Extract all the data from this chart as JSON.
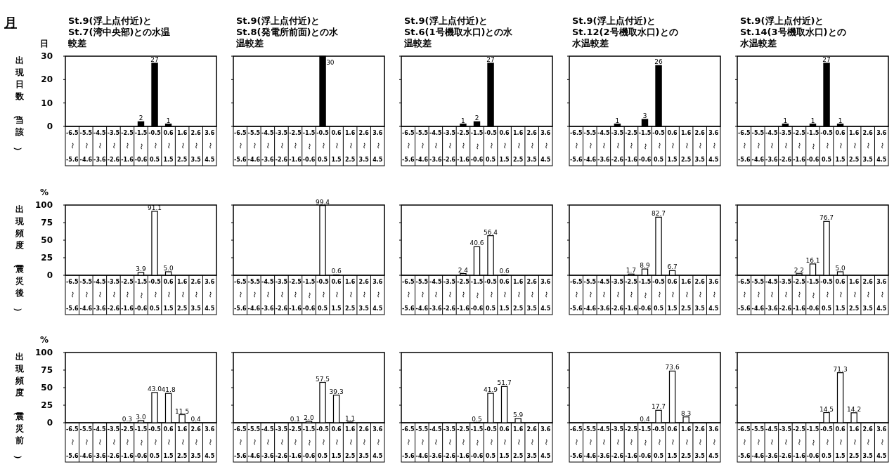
{
  "chart_data": [
    {
      "type": "bar",
      "title": "St.9(浮上点付近)とSt.7(湾中央部)との水温較差",
      "ylabel": "出現日数（当該）",
      "annotations": [
        "月",
        "日"
      ],
      "categories": [
        "-6.5〜-5.6",
        "-5.5〜-4.6",
        "-4.5〜-3.6",
        "-3.5〜-2.6",
        "-2.5〜-1.6",
        "-1.5〜-0.6",
        "-0.5〜0.5",
        "0.6〜1.5",
        "1.6〜2.5",
        "2.6〜3.5",
        "3.6〜4.5"
      ],
      "values": [
        0,
        0,
        0,
        0,
        0,
        2,
        27,
        1,
        0,
        0,
        0
      ],
      "value_labels": [
        null,
        null,
        null,
        null,
        null,
        "2",
        "27",
        "1",
        null,
        null,
        null
      ],
      "color": "#000000",
      "ylim": [
        0,
        30
      ],
      "yticks": [
        0,
        10,
        20,
        30
      ]
    },
    {
      "type": "bar",
      "title": "St.9(浮上点付近)とSt.8(発電所前面)との水温較差",
      "categories": [
        "-6.5〜-5.6",
        "-5.5〜-4.6",
        "-4.5〜-3.6",
        "-3.5〜-2.6",
        "-2.5〜-1.6",
        "-1.5〜-0.6",
        "-0.5〜0.5",
        "0.6〜1.5",
        "1.6〜2.5",
        "2.6〜3.5",
        "3.6〜4.5"
      ],
      "values": [
        0,
        0,
        0,
        0,
        0,
        0,
        30,
        0,
        0,
        0,
        0
      ],
      "value_labels": [
        null,
        null,
        null,
        null,
        null,
        null,
        "30",
        null,
        null,
        null,
        null
      ],
      "color": "#000000",
      "ylim": [
        0,
        30
      ],
      "yticks": [
        0,
        10,
        20,
        30
      ],
      "tick_labels": "x"
    },
    {
      "type": "bar",
      "title": "St.9(浮上点付近)とSt.6(1号機取水口)との水温較差",
      "categories": [
        "-6.5〜-5.6",
        "-5.5〜-4.6",
        "-4.5〜-3.6",
        "-3.5〜-2.6",
        "-2.5〜-1.6",
        "-1.5〜-0.6",
        "-0.5〜0.5",
        "0.6〜1.5",
        "1.6〜2.5",
        "2.6〜3.5",
        "3.6〜4.5"
      ],
      "values": [
        0,
        0,
        0,
        0,
        1,
        2,
        27,
        0,
        0,
        0,
        0
      ],
      "value_labels": [
        null,
        null,
        null,
        null,
        "1",
        "2",
        "27",
        null,
        null,
        null,
        null
      ],
      "color": "#000000",
      "ylim": [
        0,
        30
      ],
      "yticks": [
        0,
        10,
        20,
        30
      ],
      "tick_labels": "x"
    },
    {
      "type": "bar",
      "title": "St.9(浮上点付近)とSt.12(2号機取水口)との水温較差",
      "categories": [
        "-6.5〜-5.6",
        "-5.5〜-4.6",
        "-4.5〜-3.6",
        "-3.5〜-2.6",
        "-2.5〜-1.6",
        "-1.5〜-0.6",
        "-0.5〜0.5",
        "0.6〜1.5",
        "1.6〜2.5",
        "2.6〜3.5",
        "3.6〜4.5"
      ],
      "values": [
        0,
        0,
        0,
        1,
        0,
        3,
        26,
        0,
        0,
        0,
        0
      ],
      "value_labels": [
        null,
        null,
        null,
        "1",
        null,
        "3",
        "26",
        null,
        null,
        null,
        null
      ],
      "color": "#000000",
      "ylim": [
        0,
        30
      ],
      "yticks": [
        0,
        10,
        20,
        30
      ],
      "tick_labels": "x"
    },
    {
      "type": "bar",
      "title": "St.9(浮上点付近)とSt.14(3号機取水口)との水温較差",
      "categories": [
        "-6.5〜-5.6",
        "-5.5〜-4.6",
        "-4.5〜-3.6",
        "-3.5〜-2.6",
        "-2.5〜-1.6",
        "-1.5〜-0.6",
        "-0.5〜0.5",
        "0.6〜1.5",
        "1.6〜2.5",
        "2.6〜3.5",
        "3.6〜4.5"
      ],
      "values": [
        0,
        0,
        0,
        1,
        0,
        1,
        27,
        1,
        0,
        0,
        0
      ],
      "value_labels": [
        null,
        null,
        null,
        "1",
        null,
        "1",
        "27",
        "1",
        null,
        null,
        null
      ],
      "color": "#000000",
      "ylim": [
        0,
        30
      ],
      "yticks": [
        0,
        10,
        20,
        30
      ],
      "tick_labels": "x"
    },
    {
      "type": "bar",
      "ylabel": "出現頻度（震災後）",
      "annotations": [
        "%"
      ],
      "categories": [
        "-6.5〜-5.6",
        "-5.5〜-4.6",
        "-4.5〜-3.6",
        "-3.5〜-2.6",
        "-2.5〜-1.6",
        "-1.5〜-0.6",
        "-0.5〜0.5",
        "0.6〜1.5",
        "1.6〜2.5",
        "2.6〜3.5",
        "3.6〜4.5"
      ],
      "values": [
        0,
        0,
        0,
        0,
        0,
        3.9,
        91.1,
        5.0,
        0,
        0,
        0
      ],
      "value_labels": [
        null,
        null,
        null,
        null,
        null,
        "3.9",
        "91.1",
        "5.0",
        null,
        null,
        null
      ],
      "color": "#ffffff",
      "ylim": [
        0,
        100
      ],
      "yticks": [
        0,
        25,
        50,
        75,
        100
      ]
    },
    {
      "type": "bar",
      "categories": [
        "-6.5〜-5.6",
        "-5.5〜-4.6",
        "-4.5〜-3.6",
        "-3.5〜-2.6",
        "-2.5〜-1.6",
        "-1.5〜-0.6",
        "-0.5〜0.5",
        "0.6〜1.5",
        "1.6〜2.5",
        "2.6〜3.5",
        "3.6〜4.5"
      ],
      "values": [
        0,
        0,
        0,
        0,
        0,
        0,
        99.4,
        0.6,
        0,
        0,
        0
      ],
      "value_labels": [
        null,
        null,
        null,
        null,
        null,
        null,
        "99.4",
        "0.6",
        null,
        null,
        null
      ],
      "color": "#ffffff",
      "ylim": [
        0,
        100
      ],
      "yticks": [
        0,
        25,
        50,
        75,
        100
      ],
      "tick_labels": "x"
    },
    {
      "type": "bar",
      "categories": [
        "-6.5〜-5.6",
        "-5.5〜-4.6",
        "-4.5〜-3.6",
        "-3.5〜-2.6",
        "-2.5〜-1.6",
        "-1.5〜-0.6",
        "-0.5〜0.5",
        "0.6〜1.5",
        "1.6〜2.5",
        "2.6〜3.5",
        "3.6〜4.5"
      ],
      "values": [
        0,
        0,
        0,
        0,
        2.4,
        40.6,
        56.4,
        0.6,
        0,
        0,
        0
      ],
      "value_labels": [
        null,
        null,
        null,
        null,
        "2.4",
        "40.6",
        "56.4",
        "0.6",
        null,
        null,
        null
      ],
      "color": "#ffffff",
      "ylim": [
        0,
        100
      ],
      "yticks": [
        0,
        25,
        50,
        75,
        100
      ],
      "tick_labels": "x"
    },
    {
      "type": "bar",
      "categories": [
        "-6.5〜-5.6",
        "-5.5〜-4.6",
        "-4.5〜-3.6",
        "-3.5〜-2.6",
        "-2.5〜-1.6",
        "-1.5〜-0.6",
        "-0.5〜0.5",
        "0.6〜1.5",
        "1.6〜2.5",
        "2.6〜3.5",
        "3.6〜4.5"
      ],
      "values": [
        0,
        0,
        0,
        0,
        1.7,
        8.9,
        82.7,
        6.7,
        0,
        0,
        0
      ],
      "value_labels": [
        null,
        null,
        null,
        null,
        "1.7",
        "8.9",
        "82.7",
        "6.7",
        null,
        null,
        null
      ],
      "color": "#ffffff",
      "ylim": [
        0,
        100
      ],
      "yticks": [
        0,
        25,
        50,
        75,
        100
      ],
      "tick_labels": "x"
    },
    {
      "type": "bar",
      "categories": [
        "-6.5〜-5.6",
        "-5.5〜-4.6",
        "-4.5〜-3.6",
        "-3.5〜-2.6",
        "-2.5〜-1.6",
        "-1.5〜-0.6",
        "-0.5〜0.5",
        "0.6〜1.5",
        "1.6〜2.5",
        "2.6〜3.5",
        "3.6〜4.5"
      ],
      "values": [
        0,
        0,
        0,
        0,
        2.2,
        16.1,
        76.7,
        5.0,
        0,
        0,
        0
      ],
      "value_labels": [
        null,
        null,
        null,
        null,
        "2.2",
        "16.1",
        "76.7",
        "5.0",
        null,
        null,
        null
      ],
      "color": "#ffffff",
      "ylim": [
        0,
        100
      ],
      "yticks": [
        0,
        25,
        50,
        75,
        100
      ],
      "tick_labels": "x"
    },
    {
      "type": "bar",
      "ylabel": "出現頻度（震災前）",
      "annotations": [
        "%"
      ],
      "categories": [
        "-6.5〜-5.6",
        "-5.5〜-4.6",
        "-4.5〜-3.6",
        "-3.5〜-2.6",
        "-2.5〜-1.6",
        "-1.5〜-0.6",
        "-0.5〜0.5",
        "0.6〜1.5",
        "1.6〜2.5",
        "2.6〜3.5",
        "3.6〜4.5"
      ],
      "values": [
        0,
        0,
        0,
        0,
        0.3,
        3.0,
        43.0,
        41.8,
        11.5,
        0.4,
        0
      ],
      "value_labels": [
        null,
        null,
        null,
        null,
        "0.3",
        "3.0",
        "43.0",
        "41.8",
        "11.5",
        "0.4",
        null
      ],
      "color": "#ffffff",
      "ylim": [
        0,
        100
      ],
      "yticks": [
        0,
        25,
        50,
        75,
        100
      ]
    },
    {
      "type": "bar",
      "categories": [
        "-6.5〜-5.6",
        "-5.5〜-4.6",
        "-4.5〜-3.6",
        "-3.5〜-2.6",
        "-2.5〜-1.6",
        "-1.5〜-0.6",
        "-0.5〜0.5",
        "0.6〜1.5",
        "1.6〜2.5",
        "2.6〜3.5",
        "3.6〜4.5"
      ],
      "values": [
        0,
        0,
        0,
        0,
        0.1,
        2.0,
        57.5,
        39.3,
        1.1,
        0,
        0
      ],
      "value_labels": [
        null,
        null,
        null,
        null,
        "0.1",
        "2.0",
        "57.5",
        "39.3",
        "1.1",
        null,
        null
      ],
      "color": "#ffffff",
      "ylim": [
        0,
        100
      ],
      "yticks": [
        0,
        25,
        50,
        75,
        100
      ],
      "tick_labels": "x"
    },
    {
      "type": "bar",
      "categories": [
        "-6.5〜-5.6",
        "-5.5〜-4.6",
        "-4.5〜-3.6",
        "-3.5〜-2.6",
        "-2.5〜-1.6",
        "-1.5〜-0.6",
        "-0.5〜0.5",
        "0.6〜1.5",
        "1.6〜2.5",
        "2.6〜3.5",
        "3.6〜4.5"
      ],
      "values": [
        0,
        0,
        0,
        0,
        0,
        0.5,
        41.9,
        51.7,
        5.9,
        0,
        0
      ],
      "value_labels": [
        null,
        null,
        null,
        null,
        null,
        "0.5",
        "41.9",
        "51.7",
        "5.9",
        null,
        null
      ],
      "color": "#ffffff",
      "ylim": [
        0,
        100
      ],
      "yticks": [
        0,
        25,
        50,
        75,
        100
      ],
      "tick_labels": "x"
    },
    {
      "type": "bar",
      "categories": [
        "-6.5〜-5.6",
        "-5.5〜-4.6",
        "-4.5〜-3.6",
        "-3.5〜-2.6",
        "-2.5〜-1.6",
        "-1.5〜-0.6",
        "-0.5〜0.5",
        "0.6〜1.5",
        "1.6〜2.5",
        "2.6〜3.5",
        "3.6〜4.5"
      ],
      "values": [
        0,
        0,
        0,
        0,
        0,
        0.4,
        17.7,
        73.6,
        8.3,
        0,
        0
      ],
      "value_labels": [
        null,
        null,
        null,
        null,
        null,
        "0.4",
        "17.7",
        "73.6",
        "8.3",
        null,
        null
      ],
      "color": "#ffffff",
      "ylim": [
        0,
        100
      ],
      "yticks": [
        0,
        25,
        50,
        75,
        100
      ],
      "tick_labels": "x"
    },
    {
      "type": "bar",
      "categories": [
        "-6.5〜-5.6",
        "-5.5〜-4.6",
        "-4.5〜-3.6",
        "-3.5〜-2.6",
        "-2.5〜-1.6",
        "-1.5〜-0.6",
        "-0.5〜0.5",
        "0.6〜1.5",
        "1.6〜2.5",
        "2.6〜3.5",
        "3.6〜4.5"
      ],
      "values": [
        0,
        0,
        0,
        0,
        0,
        0,
        14.5,
        71.3,
        14.2,
        0,
        0
      ],
      "value_labels": [
        null,
        null,
        null,
        null,
        null,
        null,
        "14.5",
        "71.3",
        "14.2",
        null,
        null
      ],
      "color": "#ffffff",
      "ylim": [
        0,
        100
      ],
      "yticks": [
        0,
        25,
        50,
        75,
        100
      ],
      "tick_labels": "x"
    }
  ]
}
